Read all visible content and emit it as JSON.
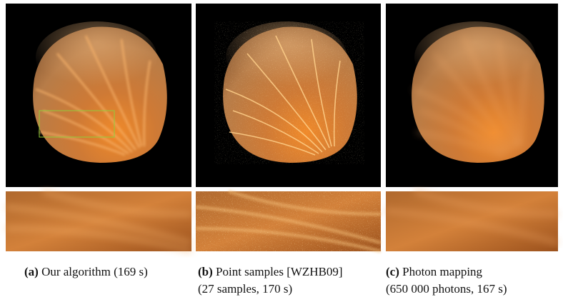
{
  "panels": [
    {
      "label": "(a)",
      "caption": [
        "Our algorithm (169 s)"
      ]
    },
    {
      "label": "(b)",
      "caption": [
        "Point samples [WZHB09]",
        "(27 samples, 170 s)"
      ]
    },
    {
      "label": "(c)",
      "caption": [
        "Photon mapping",
        "(650 000 photons, 167 s)"
      ]
    }
  ]
}
